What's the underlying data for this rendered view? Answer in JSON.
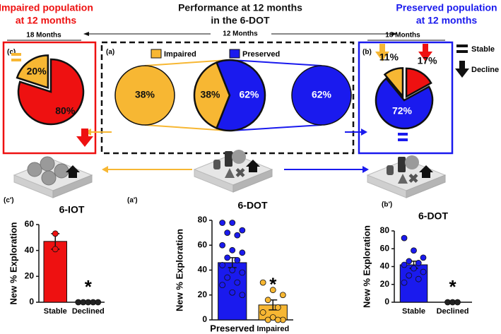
{
  "header": {
    "left": [
      "Impaired population",
      "at 12 months"
    ],
    "center": [
      "Performance at 12 months",
      "in the 6-DOT"
    ],
    "right": [
      "Preserved population",
      "at 12 months"
    ],
    "timeline": [
      "18 Months",
      "12 Months",
      "18 Months"
    ],
    "legend": [
      "Stable",
      "Decline"
    ]
  },
  "panel_labels": [
    "(c)",
    "(a)",
    "(b)",
    "(c')",
    "(a')",
    "(b')"
  ],
  "chart_data": [
    {
      "type": "pie",
      "categories": [
        "Impaired",
        "Preserved"
      ],
      "values": [
        38,
        62
      ],
      "value_labels": [
        "38%",
        "62%"
      ],
      "colors": [
        "#f7b733",
        "#1a1aee"
      ]
    },
    {
      "type": "circle",
      "values": [
        38
      ],
      "value_labels": [
        "38%"
      ],
      "colors": [
        "#f7b733"
      ]
    },
    {
      "type": "circle",
      "values": [
        62
      ],
      "value_labels": [
        "62%"
      ],
      "colors": [
        "#1a1aee"
      ]
    },
    {
      "type": "pie",
      "values": [
        11,
        17,
        72
      ],
      "value_labels": [
        "11%",
        "17%",
        "72%"
      ],
      "colors": [
        "#f7b733",
        "#ee1111",
        "#1a1aee"
      ]
    },
    {
      "type": "pie",
      "values": [
        20,
        80
      ],
      "value_labels": [
        "20%",
        "80%"
      ],
      "colors": [
        "#f7b733",
        "#ee1111"
      ]
    },
    {
      "type": "bar",
      "title": "6-IOT",
      "ylabel": "New % Exploration",
      "categories": [
        "Stable",
        "Declined"
      ],
      "values": [
        47,
        0
      ],
      "errors": [
        6,
        0
      ],
      "points": [
        [
          53,
          41
        ],
        [
          0,
          0,
          0,
          0,
          0
        ]
      ],
      "colors": [
        "#ee1111",
        "#ee1111"
      ],
      "point_colors": [
        "#ee1111",
        "#222222"
      ],
      "ylim": [
        0,
        60
      ],
      "yticks": [
        0,
        20,
        40,
        60
      ],
      "annotation": "*"
    },
    {
      "type": "bar",
      "title": "6-DOT",
      "ylabel": "New % Exploration",
      "categories": [
        "Preserved",
        "Impaired"
      ],
      "values": [
        46,
        12
      ],
      "errors": [
        4,
        4
      ],
      "points": [
        [
          78,
          78,
          72,
          70,
          68,
          60,
          56,
          54,
          50,
          48,
          44,
          40,
          38,
          34,
          30,
          28,
          22,
          20
        ],
        [
          30,
          24,
          20,
          16,
          10,
          6,
          2,
          0,
          0,
          0
        ]
      ],
      "colors": [
        "#1a1aee",
        "#f7b733"
      ],
      "point_colors": [
        "#1a1aee",
        "#f7b733"
      ],
      "ylim": [
        0,
        80
      ],
      "yticks": [
        0,
        20,
        40,
        60,
        80
      ],
      "annotation": "*"
    },
    {
      "type": "bar",
      "title": "6-DOT",
      "ylabel": "New % Exploration",
      "categories": [
        "Stable",
        "Declined"
      ],
      "values": [
        42,
        0
      ],
      "errors": [
        4,
        0
      ],
      "points": [
        [
          72,
          58,
          50,
          46,
          44,
          42,
          38,
          34,
          30,
          26,
          22
        ],
        [
          0,
          0,
          0
        ]
      ],
      "colors": [
        "#1a1aee",
        "#1a1aee"
      ],
      "point_colors": [
        "#1a1aee",
        "#222222"
      ],
      "ylim": [
        0,
        80
      ],
      "yticks": [
        0,
        20,
        40,
        60,
        80
      ],
      "annotation": "*"
    }
  ]
}
